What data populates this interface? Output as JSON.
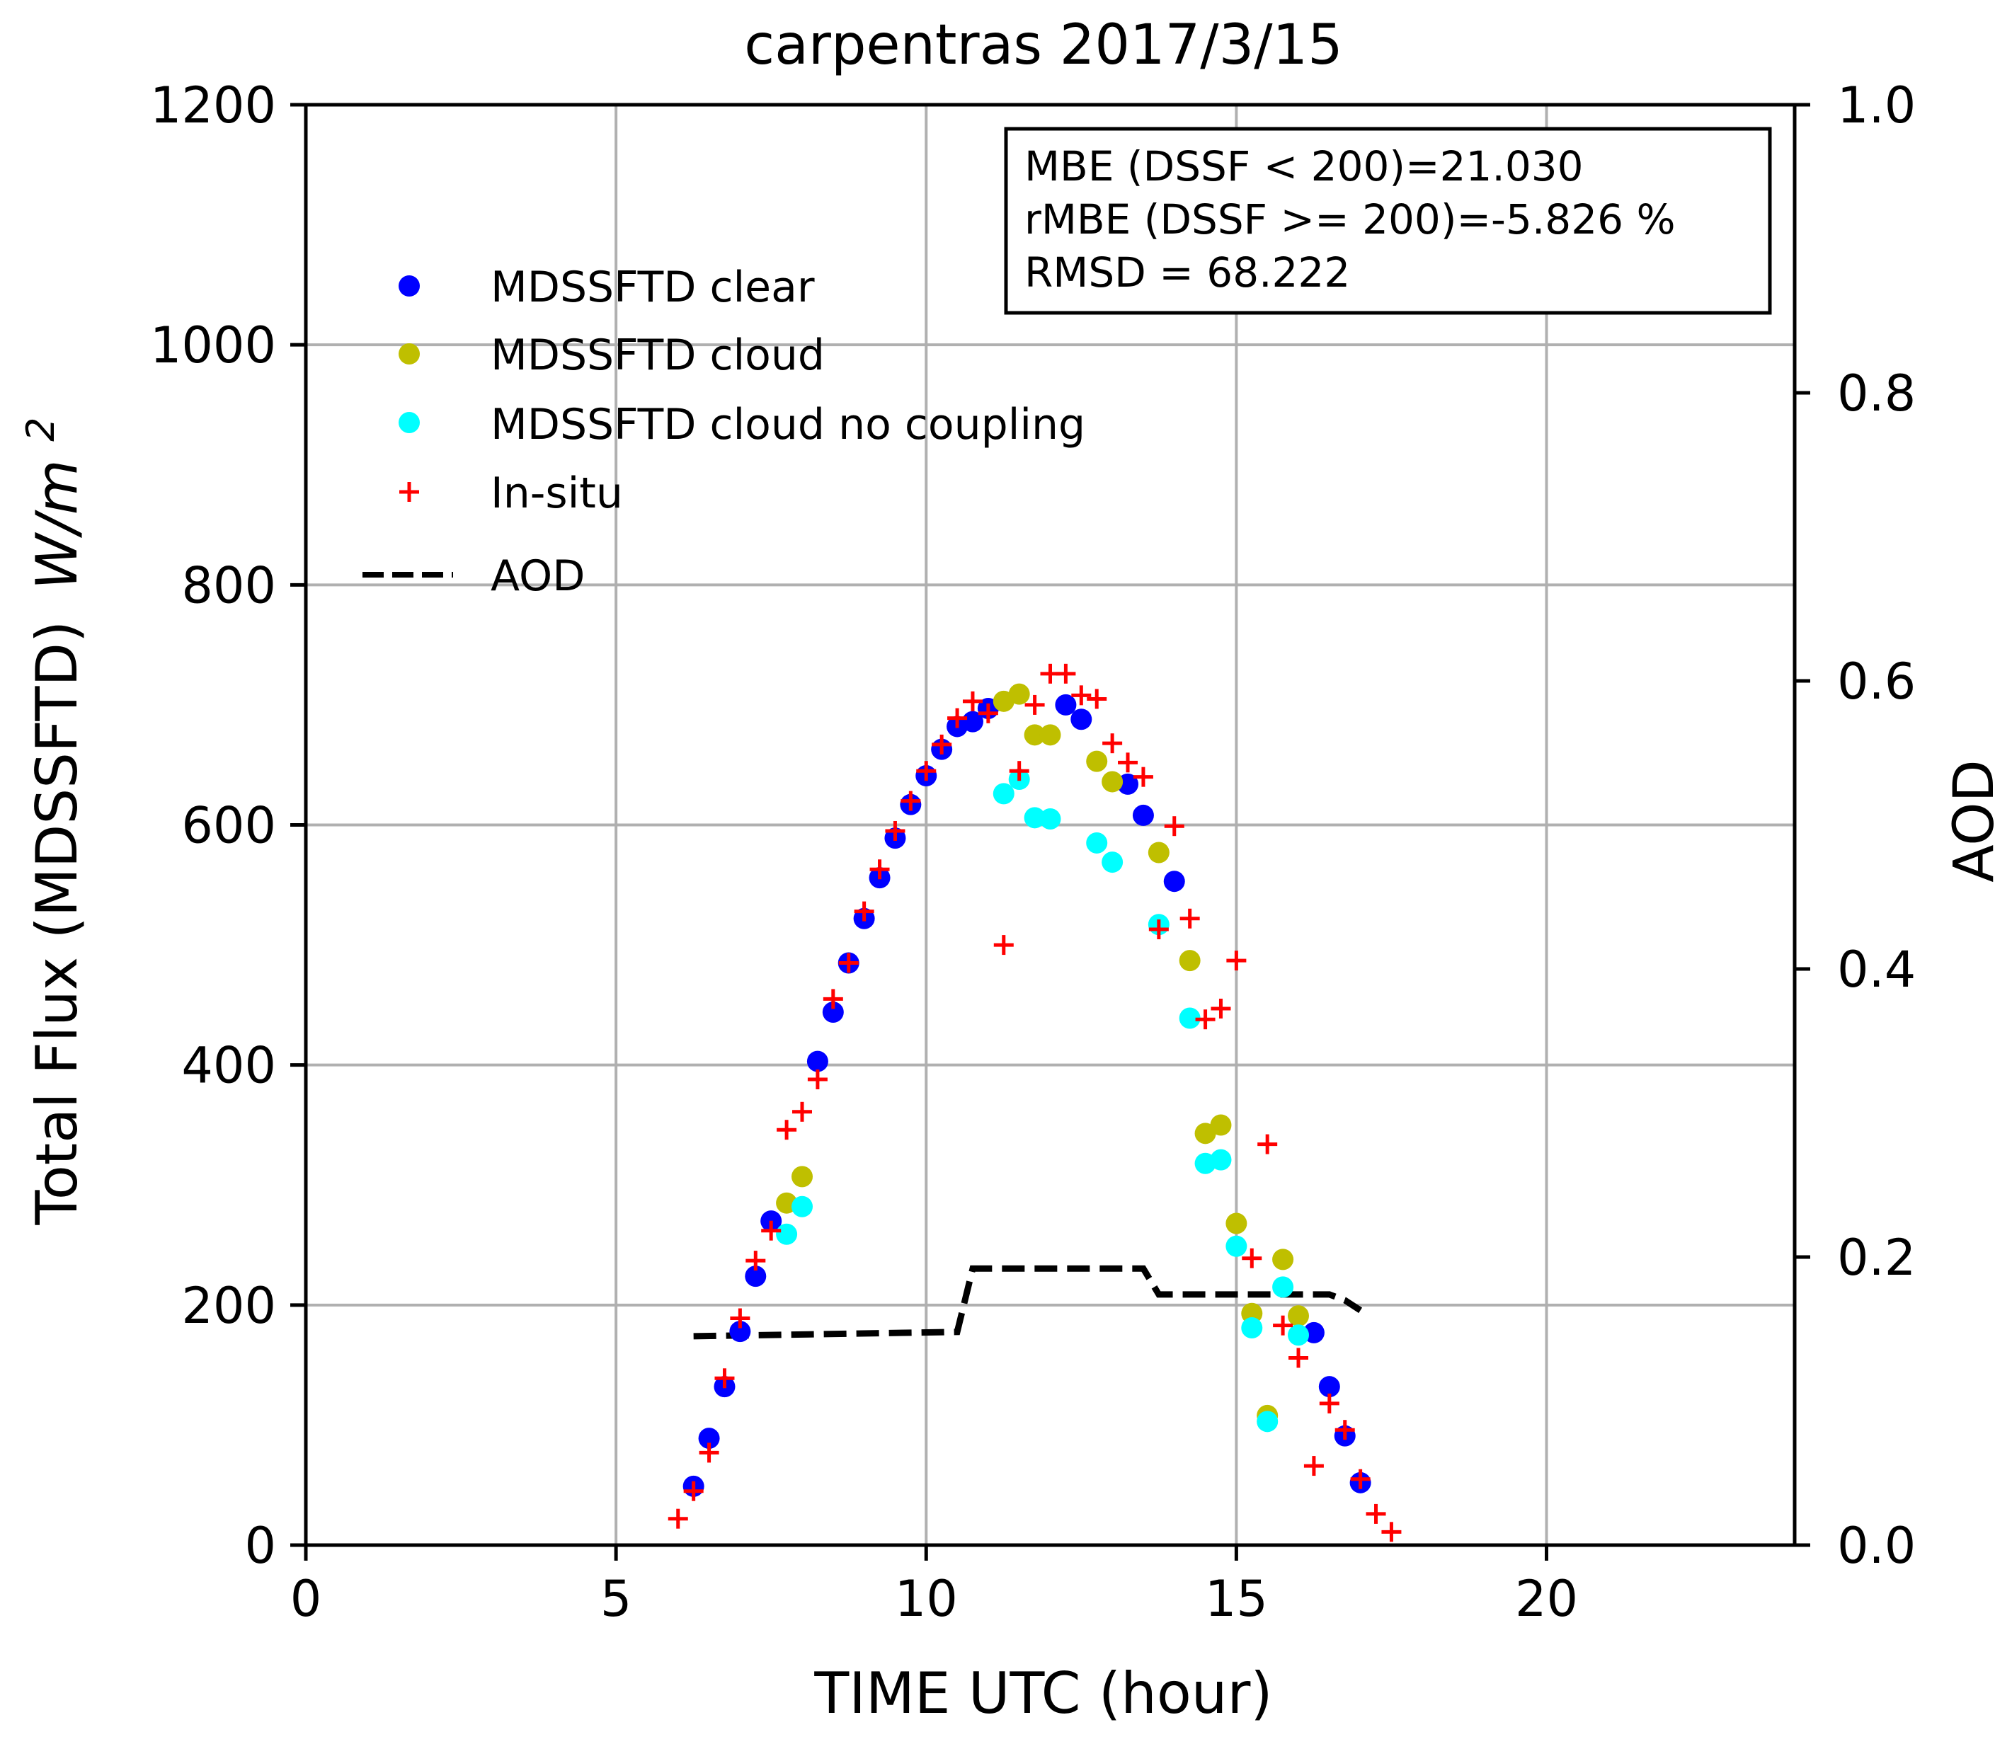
{
  "chart_data": {
    "type": "scatter",
    "title": "carpentras  2017/3/15",
    "xlabel": "TIME UTC (hour)",
    "ylabel": "Total Flux (MDSSFTD)",
    "ylabel_unit_base": "W/m",
    "ylabel_unit_exp": "2",
    "y2label": "AOD",
    "xlim": [
      0,
      24
    ],
    "ylim": [
      0,
      1200
    ],
    "y2lim": [
      0,
      1.0
    ],
    "xticks": [
      0,
      5,
      10,
      15,
      20
    ],
    "xtick_labels": [
      "0",
      "5",
      "10",
      "15",
      "20"
    ],
    "yticks": [
      0,
      200,
      400,
      600,
      800,
      1000,
      1200
    ],
    "ytick_labels": [
      "0",
      "200",
      "400",
      "600",
      "800",
      "1000",
      "1200"
    ],
    "y2ticks": [
      0,
      0.2,
      0.4,
      0.6,
      0.8,
      1.0
    ],
    "y2tick_labels": [
      "0.0",
      "0.2",
      "0.4",
      "0.6",
      "0.8",
      "1.0"
    ],
    "grid": true,
    "legend_position": "upper-left",
    "stats_box": [
      "MBE (DSSF < 200)=21.030",
      "rMBE (DSSF >= 200)=-5.826 %",
      "RMSD = 68.222"
    ],
    "series": [
      {
        "name": "MDSSFTD clear",
        "marker": "circle",
        "color": "#0000ff",
        "points": [
          [
            6.25,
            49
          ],
          [
            6.5,
            89
          ],
          [
            6.75,
            132
          ],
          [
            7.0,
            178
          ],
          [
            7.25,
            224
          ],
          [
            7.5,
            270
          ],
          [
            8.25,
            403
          ],
          [
            8.5,
            444
          ],
          [
            8.75,
            485
          ],
          [
            9.0,
            522
          ],
          [
            9.25,
            556
          ],
          [
            9.5,
            589
          ],
          [
            9.75,
            617
          ],
          [
            10.0,
            641
          ],
          [
            10.25,
            663
          ],
          [
            10.5,
            682
          ],
          [
            10.75,
            686
          ],
          [
            11.0,
            697
          ],
          [
            12.25,
            700
          ],
          [
            12.5,
            688
          ],
          [
            13.25,
            634
          ],
          [
            13.5,
            608
          ],
          [
            14.0,
            553
          ],
          [
            16.25,
            177
          ],
          [
            16.5,
            132
          ],
          [
            16.75,
            91
          ],
          [
            17.0,
            52
          ]
        ]
      },
      {
        "name": "MDSSFTD cloud",
        "marker": "circle",
        "color": "#bfbf00",
        "points": [
          [
            7.75,
            285
          ],
          [
            8.0,
            307
          ],
          [
            11.25,
            703
          ],
          [
            11.5,
            709
          ],
          [
            11.75,
            675
          ],
          [
            12.0,
            675
          ],
          [
            12.75,
            653
          ],
          [
            13.0,
            636
          ],
          [
            13.75,
            577
          ],
          [
            14.25,
            487
          ],
          [
            14.5,
            343
          ],
          [
            14.75,
            350
          ],
          [
            15.0,
            268
          ],
          [
            15.25,
            193
          ],
          [
            15.5,
            108
          ],
          [
            15.75,
            238
          ],
          [
            16.0,
            191
          ]
        ]
      },
      {
        "name": "MDSSFTD cloud no coupling",
        "marker": "circle",
        "color": "#00ffff",
        "points": [
          [
            7.75,
            259
          ],
          [
            8.0,
            282
          ],
          [
            11.25,
            626
          ],
          [
            11.5,
            638
          ],
          [
            11.75,
            606
          ],
          [
            12.0,
            605
          ],
          [
            12.75,
            585
          ],
          [
            13.0,
            569
          ],
          [
            13.75,
            517
          ],
          [
            14.25,
            439
          ],
          [
            14.5,
            318
          ],
          [
            14.75,
            321
          ],
          [
            15.0,
            249
          ],
          [
            15.25,
            181
          ],
          [
            15.5,
            103
          ],
          [
            15.75,
            215
          ],
          [
            16.0,
            175
          ]
        ]
      },
      {
        "name": "In-situ",
        "marker": "plus",
        "color": "#ff0000",
        "points": [
          [
            6.0,
            22
          ],
          [
            6.25,
            45
          ],
          [
            6.5,
            77
          ],
          [
            6.75,
            139
          ],
          [
            7.0,
            189
          ],
          [
            7.25,
            237
          ],
          [
            7.5,
            262
          ],
          [
            7.75,
            346
          ],
          [
            8.0,
            361
          ],
          [
            8.25,
            388
          ],
          [
            8.5,
            455
          ],
          [
            8.75,
            485
          ],
          [
            9.0,
            528
          ],
          [
            9.25,
            563
          ],
          [
            9.5,
            595
          ],
          [
            9.75,
            620
          ],
          [
            10.0,
            645
          ],
          [
            10.25,
            667
          ],
          [
            10.5,
            689
          ],
          [
            10.75,
            703
          ],
          [
            11.0,
            693
          ],
          [
            11.25,
            500
          ],
          [
            11.5,
            645
          ],
          [
            11.75,
            700
          ],
          [
            12.0,
            726
          ],
          [
            12.25,
            726
          ],
          [
            12.5,
            708
          ],
          [
            12.75,
            705
          ],
          [
            13.0,
            668
          ],
          [
            13.25,
            652
          ],
          [
            13.5,
            640
          ],
          [
            13.75,
            513
          ],
          [
            14.0,
            599
          ],
          [
            14.25,
            522
          ],
          [
            14.5,
            438
          ],
          [
            14.75,
            447
          ],
          [
            15.0,
            487
          ],
          [
            15.25,
            239
          ],
          [
            15.5,
            334
          ],
          [
            15.75,
            183
          ],
          [
            16.0,
            156
          ],
          [
            16.25,
            66
          ],
          [
            16.5,
            118
          ],
          [
            16.75,
            96
          ],
          [
            17.0,
            55
          ],
          [
            17.25,
            26
          ],
          [
            17.5,
            11
          ]
        ]
      }
    ],
    "aod_series": {
      "name": "AOD",
      "style": "dashed",
      "color": "#000000",
      "points": [
        [
          6.25,
          0.145
        ],
        [
          10.5,
          0.148
        ],
        [
          10.75,
          0.192
        ],
        [
          13.5,
          0.192
        ],
        [
          13.75,
          0.174
        ],
        [
          16.5,
          0.174
        ],
        [
          16.75,
          0.17
        ],
        [
          17.0,
          0.163
        ]
      ]
    }
  }
}
